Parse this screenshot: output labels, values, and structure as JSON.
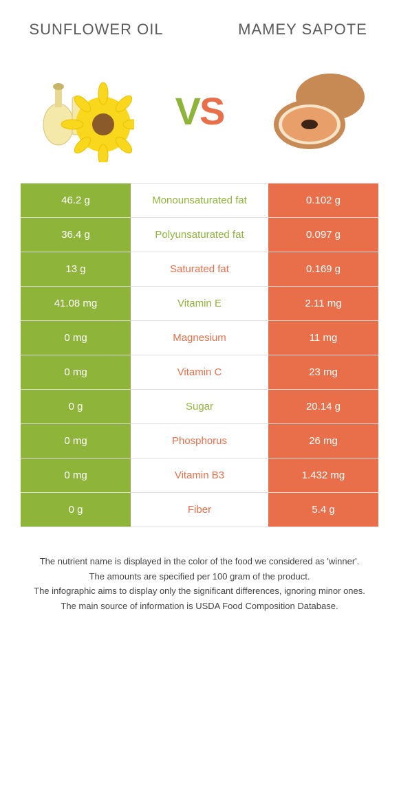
{
  "colors": {
    "left": "#8fb43a",
    "right": "#e86f4a",
    "title": "#5a5a5a"
  },
  "foods": {
    "left": {
      "name": "Sunflower oil"
    },
    "right": {
      "name": "Mamey Sapote"
    }
  },
  "vs": {
    "v": "V",
    "s": "S"
  },
  "rows": [
    {
      "left": "46.2 g",
      "label": "Monounsaturated fat",
      "right": "0.102 g",
      "winner": "left"
    },
    {
      "left": "36.4 g",
      "label": "Polyunsaturated fat",
      "right": "0.097 g",
      "winner": "left"
    },
    {
      "left": "13 g",
      "label": "Saturated fat",
      "right": "0.169 g",
      "winner": "right"
    },
    {
      "left": "41.08 mg",
      "label": "Vitamin E",
      "right": "2.11 mg",
      "winner": "left"
    },
    {
      "left": "0 mg",
      "label": "Magnesium",
      "right": "11 mg",
      "winner": "right"
    },
    {
      "left": "0 mg",
      "label": "Vitamin C",
      "right": "23 mg",
      "winner": "right"
    },
    {
      "left": "0 g",
      "label": "Sugar",
      "right": "20.14 g",
      "winner": "left"
    },
    {
      "left": "0 mg",
      "label": "Phosphorus",
      "right": "26 mg",
      "winner": "right"
    },
    {
      "left": "0 mg",
      "label": "Vitamin B3",
      "right": "1.432 mg",
      "winner": "right"
    },
    {
      "left": "0 g",
      "label": "Fiber",
      "right": "5.4 g",
      "winner": "right"
    }
  ],
  "footer": [
    "The nutrient name is displayed in the color of the food we considered as 'winner'.",
    "The amounts are specified per 100 gram of the product.",
    "The infographic aims to display only the significant differences, ignoring minor ones.",
    "The main source of information is USDA Food Composition Database."
  ]
}
